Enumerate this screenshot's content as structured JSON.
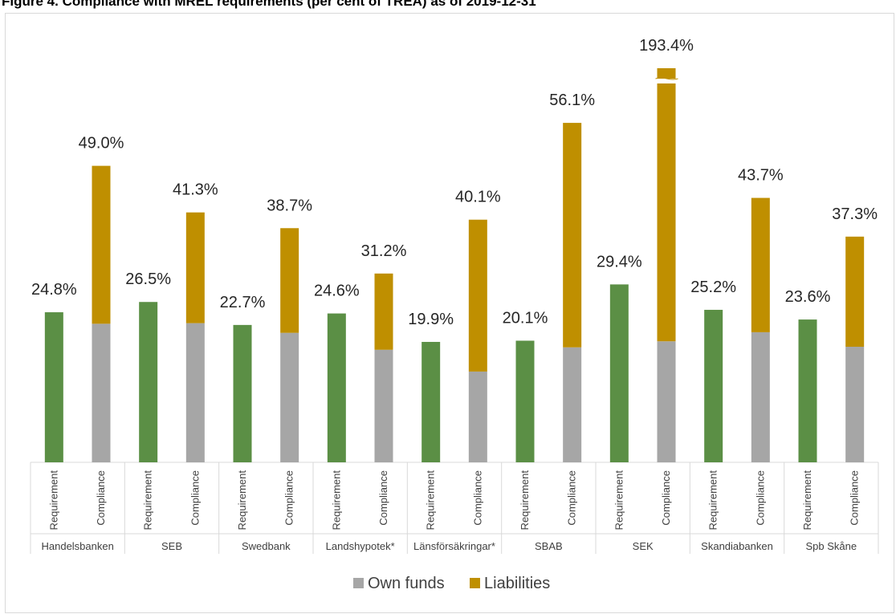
{
  "chart_data": {
    "type": "bar",
    "stacked": true,
    "title": "Figure 4. Compliance with MREL requirements (per cent of TREA) as of 2019-12-31",
    "groups": [
      "Handelsbanken",
      "SEB",
      "Swedbank",
      "Landshypotek*",
      "Länsförsäkringar*",
      "SBAB",
      "SEK",
      "Skandiabanken",
      "Spb Skåne"
    ],
    "subcategories": [
      "Requirement",
      "Compliance"
    ],
    "requirement": {
      "color": "#5b8f45",
      "values": [
        24.8,
        26.5,
        22.7,
        24.6,
        19.9,
        20.1,
        29.4,
        25.2,
        23.6
      ],
      "labels": [
        "24.8%",
        "26.5%",
        "22.7%",
        "24.6%",
        "19.9%",
        "20.1%",
        "29.4%",
        "25.2%",
        "23.6%"
      ]
    },
    "series": [
      {
        "name": "Own funds",
        "color": "#a6a6a6",
        "values": [
          22.9,
          23.0,
          21.4,
          18.6,
          15.0,
          19.0,
          20.0,
          21.5,
          19.1
        ]
      },
      {
        "name": "Liabilities",
        "color": "#bf8f00",
        "values": [
          26.1,
          18.3,
          17.3,
          12.6,
          25.1,
          37.1,
          173.4,
          22.2,
          18.2
        ]
      }
    ],
    "totals_labels": [
      "49.0%",
      "41.3%",
      "38.7%",
      "31.2%",
      "40.1%",
      "56.1%",
      "193.4%",
      "43.7%",
      "37.3%"
    ],
    "axis_break": {
      "group": "SEK",
      "note": "bar truncated with axis break"
    },
    "ylim": [
      0,
      65
    ],
    "grid": false,
    "legend_position": "bottom"
  }
}
